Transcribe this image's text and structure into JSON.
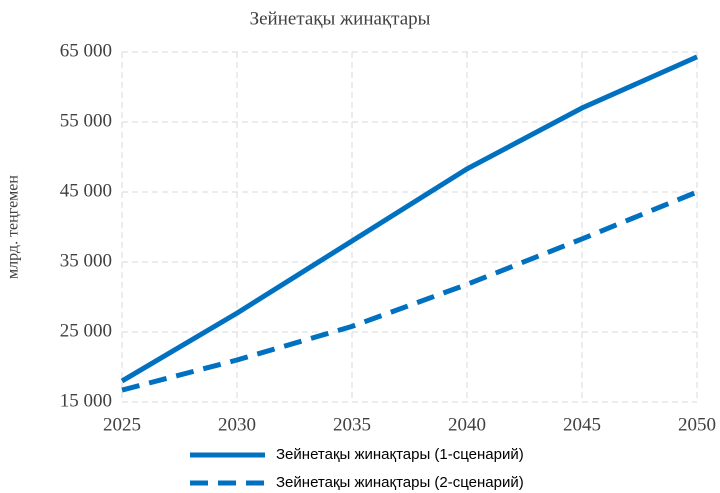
{
  "chart_data": {
    "type": "line",
    "title": "Зейнетақы жинақтары",
    "ylabel": "млрд. теңгемен",
    "x": [
      2025,
      2030,
      2035,
      2040,
      2045,
      2050
    ],
    "series": [
      {
        "name": "Зейнетақы жинақтары (1-сценарий)",
        "color": "#0070c0",
        "linestyle": "solid",
        "values": [
          18000,
          27700,
          38000,
          48300,
          57000,
          64300
        ]
      },
      {
        "name": "Зейнетақы жинақтары (2-сценарий)",
        "color": "#0070c0",
        "linestyle": "dashed",
        "values": [
          16700,
          21000,
          25800,
          31800,
          38300,
          45000
        ]
      }
    ],
    "xlim": [
      2025,
      2050
    ],
    "xticks": [
      2025,
      2030,
      2035,
      2040,
      2045,
      2050
    ],
    "ylim": [
      15000,
      65000
    ],
    "yticks": [
      {
        "value": 15000,
        "label": "15 000"
      },
      {
        "value": 25000,
        "label": "25 000"
      },
      {
        "value": 35000,
        "label": "35 000"
      },
      {
        "value": 45000,
        "label": "45 000"
      },
      {
        "value": 55000,
        "label": "55 000"
      },
      {
        "value": 65000,
        "label": "65 000"
      }
    ],
    "grid": true,
    "legend": "bottom"
  }
}
